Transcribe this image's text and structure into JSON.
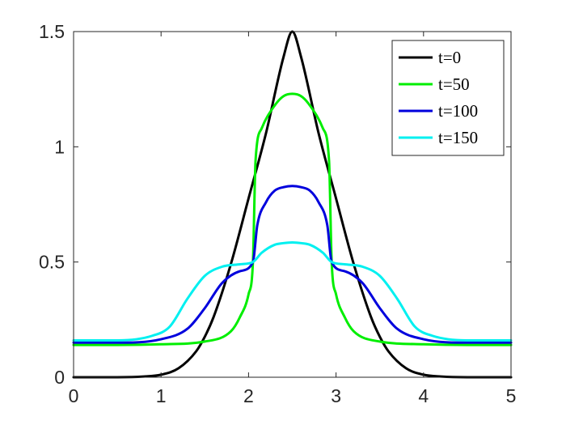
{
  "chart_data": {
    "type": "line",
    "title": "",
    "xlabel": "",
    "ylabel": "",
    "xlim": [
      0,
      5
    ],
    "ylim": [
      0,
      1.5
    ],
    "xticks": [
      "0",
      "1",
      "2",
      "3",
      "4",
      "5"
    ],
    "yticks": [
      "0",
      "0.5",
      "1",
      "1.5"
    ],
    "grid": false,
    "box": true,
    "legend_position": "top-right",
    "series": [
      {
        "name": "t=0",
        "color": "#000000",
        "x": [
          0,
          0.5,
          0.8,
          1.0,
          1.2,
          1.4,
          1.5,
          1.6,
          1.8,
          2.0,
          2.2,
          2.4,
          2.5,
          2.6,
          2.8,
          3.0,
          3.2,
          3.4,
          3.5,
          3.6,
          3.8,
          4.0,
          4.2,
          4.5,
          5.0
        ],
        "y": [
          0,
          0,
          0.003,
          0.011,
          0.039,
          0.112,
          0.176,
          0.261,
          0.494,
          0.776,
          1.06,
          1.39,
          1.5,
          1.39,
          1.06,
          0.776,
          0.494,
          0.261,
          0.176,
          0.112,
          0.039,
          0.011,
          0.003,
          0,
          0
        ]
      },
      {
        "name": "t=50",
        "color": "#00ee00",
        "x": [
          0,
          0.5,
          1.0,
          1.5,
          1.8,
          1.9,
          2.0,
          2.05,
          2.08,
          2.15,
          2.3,
          2.4,
          2.5,
          2.6,
          2.7,
          2.85,
          2.92,
          2.95,
          3.0,
          3.1,
          3.2,
          3.5,
          4.0,
          4.5,
          5.0
        ],
        "y": [
          0.14,
          0.14,
          0.143,
          0.155,
          0.2,
          0.26,
          0.36,
          0.5,
          0.94,
          1.08,
          1.18,
          1.22,
          1.23,
          1.22,
          1.18,
          1.08,
          0.94,
          0.5,
          0.36,
          0.26,
          0.2,
          0.155,
          0.143,
          0.14,
          0.14
        ]
      },
      {
        "name": "t=100",
        "color": "#0000dd",
        "x": [
          0,
          0.5,
          1.0,
          1.3,
          1.5,
          1.7,
          1.9,
          2.05,
          2.1,
          2.2,
          2.3,
          2.4,
          2.5,
          2.6,
          2.7,
          2.8,
          2.9,
          2.95,
          3.1,
          3.3,
          3.5,
          3.7,
          4.0,
          4.5,
          5.0
        ],
        "y": [
          0.15,
          0.15,
          0.165,
          0.21,
          0.3,
          0.41,
          0.46,
          0.5,
          0.66,
          0.76,
          0.81,
          0.825,
          0.83,
          0.825,
          0.81,
          0.76,
          0.66,
          0.5,
          0.46,
          0.41,
          0.3,
          0.21,
          0.165,
          0.15,
          0.15
        ]
      },
      {
        "name": "t=150",
        "color": "#00f0f0",
        "x": [
          0,
          0.5,
          0.9,
          1.1,
          1.3,
          1.5,
          1.7,
          1.9,
          2.05,
          2.15,
          2.3,
          2.4,
          2.5,
          2.6,
          2.7,
          2.85,
          2.95,
          3.1,
          3.3,
          3.5,
          3.7,
          3.9,
          4.1,
          4.5,
          5.0
        ],
        "y": [
          0.16,
          0.16,
          0.18,
          0.22,
          0.34,
          0.44,
          0.48,
          0.49,
          0.5,
          0.54,
          0.575,
          0.582,
          0.585,
          0.582,
          0.575,
          0.54,
          0.5,
          0.49,
          0.48,
          0.44,
          0.34,
          0.22,
          0.18,
          0.16,
          0.16
        ]
      }
    ]
  }
}
